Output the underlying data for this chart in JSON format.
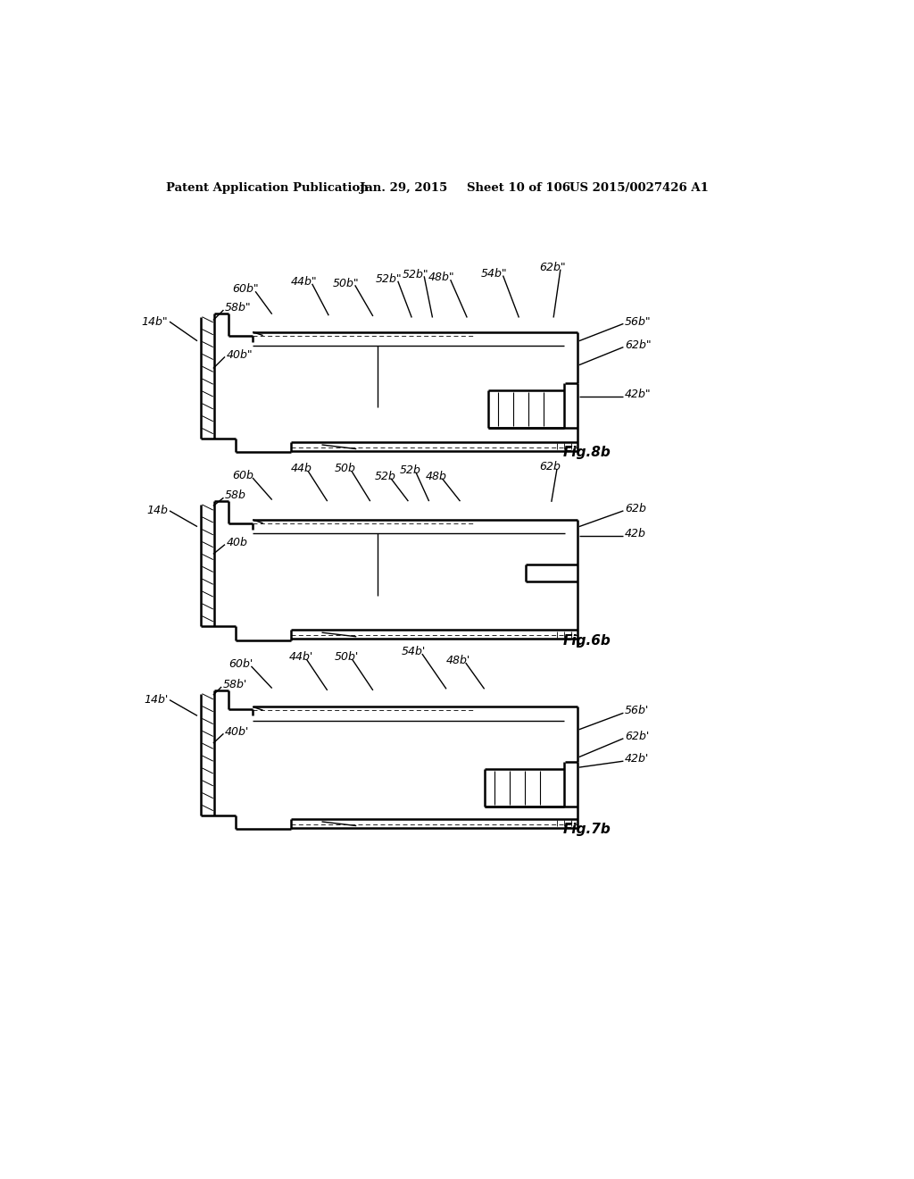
{
  "bg_color": "#ffffff",
  "header_text": "Patent Application Publication",
  "header_date": "Jan. 29, 2015",
  "header_sheet": "Sheet 10 of 106",
  "header_patent": "US 2015/0027426 A1",
  "fig8b_label": "Fig.8b",
  "fig6b_label": "Fig.6b",
  "fig7b_label": "Fig.7b"
}
